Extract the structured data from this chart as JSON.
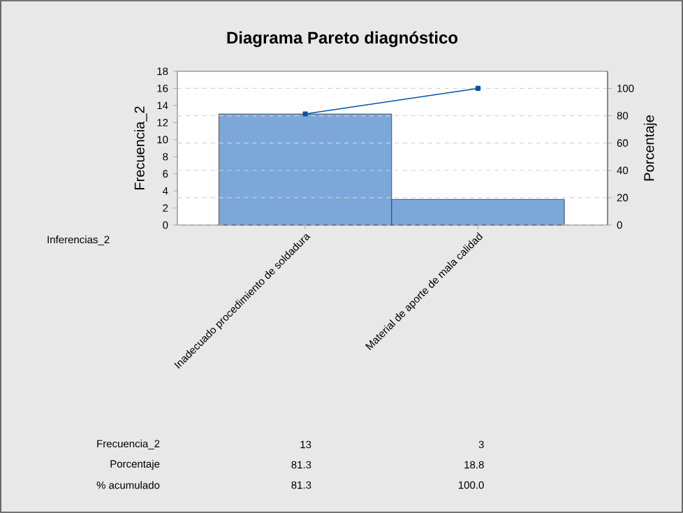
{
  "chart_data": {
    "type": "bar",
    "title": "Diagrama Pareto diagnóstico",
    "xlabel": "Inferencias_2",
    "ylabel": "Frecuencia_2",
    "y2label": "Porcentaje",
    "categories": [
      "Inadecuado procedimiento de soldadura",
      "Material de aporte de mala calidad"
    ],
    "series": [
      {
        "color": "#7ba7d9",
        "values": [
          13,
          3
        ],
        "value_labels": [
          "13",
          "3"
        ]
      },
      {
        "type": "line",
        "axis": "y2",
        "color": "#0054a6",
        "values": [
          81.3,
          100.0
        ],
        "value_labels": [
          "81.3",
          "100.0"
        ]
      }
    ],
    "ylim": [
      0,
      18
    ],
    "yticks": [
      0,
      2,
      4,
      6,
      8,
      10,
      12,
      14,
      16,
      18
    ],
    "y2lim": [
      0,
      112.5
    ],
    "y2ticks": [
      0,
      20,
      40,
      60,
      80,
      100
    ],
    "grid": "y",
    "marker": "square",
    "line_style": "solid",
    "annotations": [
      "Frecuencia_2",
      "Porcentaje",
      "% acumulado",
      "81.3",
      "18.8"
    ]
  }
}
